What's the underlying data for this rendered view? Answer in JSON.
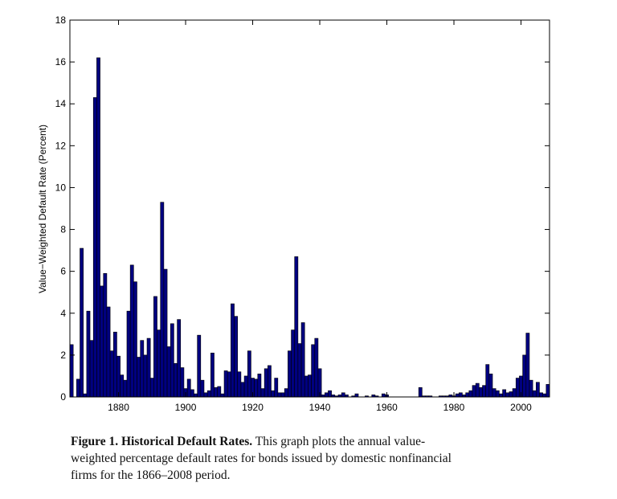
{
  "chart_data": {
    "type": "bar",
    "ylabel": "Value−Weighted Default Rate (Percent)",
    "x": [
      1866,
      1867,
      1868,
      1869,
      1870,
      1871,
      1872,
      1873,
      1874,
      1875,
      1876,
      1877,
      1878,
      1879,
      1880,
      1881,
      1882,
      1883,
      1884,
      1885,
      1886,
      1887,
      1888,
      1889,
      1890,
      1891,
      1892,
      1893,
      1894,
      1895,
      1896,
      1897,
      1898,
      1899,
      1900,
      1901,
      1902,
      1903,
      1904,
      1905,
      1906,
      1907,
      1908,
      1909,
      1910,
      1911,
      1912,
      1913,
      1914,
      1915,
      1916,
      1917,
      1918,
      1919,
      1920,
      1921,
      1922,
      1923,
      1924,
      1925,
      1926,
      1927,
      1928,
      1929,
      1930,
      1931,
      1932,
      1933,
      1934,
      1935,
      1936,
      1937,
      1938,
      1939,
      1940,
      1941,
      1942,
      1943,
      1944,
      1945,
      1946,
      1947,
      1948,
      1949,
      1950,
      1951,
      1952,
      1953,
      1954,
      1955,
      1956,
      1957,
      1958,
      1959,
      1960,
      1961,
      1962,
      1963,
      1964,
      1965,
      1966,
      1967,
      1968,
      1969,
      1970,
      1971,
      1972,
      1973,
      1974,
      1975,
      1976,
      1977,
      1978,
      1979,
      1980,
      1981,
      1982,
      1983,
      1984,
      1985,
      1986,
      1987,
      1988,
      1989,
      1990,
      1991,
      1992,
      1993,
      1994,
      1995,
      1996,
      1997,
      1998,
      1999,
      2000,
      2001,
      2002,
      2003,
      2004,
      2005,
      2006,
      2007,
      2008
    ],
    "values": [
      2.5,
      0,
      0.85,
      7.1,
      0.15,
      4.1,
      2.7,
      14.3,
      16.2,
      5.3,
      5.9,
      4.3,
      2.2,
      3.1,
      1.95,
      1.05,
      0.8,
      4.1,
      6.3,
      5.5,
      1.9,
      2.7,
      2.0,
      2.8,
      0.9,
      4.8,
      3.2,
      9.3,
      6.1,
      2.4,
      3.5,
      1.6,
      3.7,
      1.4,
      0.4,
      0.85,
      0.35,
      0.15,
      2.95,
      0.8,
      0.2,
      0.3,
      2.1,
      0.45,
      0.5,
      0.15,
      1.25,
      1.2,
      4.45,
      3.85,
      1.2,
      0.7,
      1.0,
      2.2,
      0.9,
      0.85,
      1.1,
      0.4,
      1.35,
      1.5,
      0.3,
      0.9,
      0.2,
      0.2,
      0.4,
      2.2,
      3.2,
      6.7,
      2.55,
      3.55,
      1.0,
      1.05,
      2.5,
      2.8,
      1.35,
      0.1,
      0.2,
      0.3,
      0.1,
      0.05,
      0.1,
      0.2,
      0.1,
      0,
      0.05,
      0.15,
      0,
      0,
      0.05,
      0,
      0.1,
      0.05,
      0,
      0.15,
      0.1,
      0,
      0,
      0,
      0,
      0,
      0,
      0,
      0,
      0,
      0.45,
      0.05,
      0.05,
      0.05,
      0,
      0,
      0.05,
      0.05,
      0.05,
      0.1,
      0.05,
      0.15,
      0.2,
      0.1,
      0.2,
      0.3,
      0.55,
      0.65,
      0.45,
      0.55,
      1.55,
      1.1,
      0.4,
      0.3,
      0.15,
      0.35,
      0.2,
      0.25,
      0.4,
      0.9,
      1.0,
      2.0,
      3.05,
      0.8,
      0.3,
      0.7,
      0.2,
      0.15,
      0.6
    ],
    "color": "#000080",
    "xlim": [
      1865.5,
      2008.5
    ],
    "xticks": [
      1880,
      1900,
      1920,
      1940,
      1960,
      1980,
      2000
    ],
    "ylim": [
      0,
      18
    ],
    "yticks": [
      0,
      2,
      4,
      6,
      8,
      10,
      12,
      14,
      16,
      18
    ]
  },
  "caption": {
    "heading": "Figure 1.  Historical Default Rates.",
    "lines": [
      "This graph plots the annual value-",
      "weighted percentage default rates for bonds issued by domestic nonfinancial",
      "firms for the 1866–2008 period."
    ]
  }
}
